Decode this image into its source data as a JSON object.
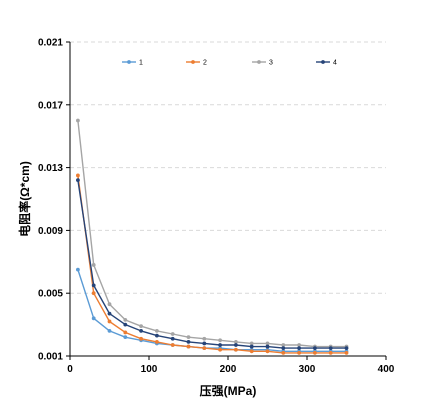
{
  "chart_data": {
    "type": "line",
    "title": "",
    "xlabel": "压强(MPa)",
    "ylabel": "电阻率(Ω*cm)",
    "xlim": [
      0,
      400
    ],
    "ylim": [
      0.001,
      0.021
    ],
    "xticks": [
      0,
      100,
      200,
      300,
      400
    ],
    "xtick_labels": [
      "0",
      "100",
      "200",
      "300",
      "400"
    ],
    "yticks": [
      0.001,
      0.005,
      0.009,
      0.013,
      0.017,
      0.021
    ],
    "ytick_labels": [
      "0.001",
      "0.005",
      "0.009",
      "0.013",
      "0.017",
      "0.021"
    ],
    "grid": "horizontal dashed",
    "legend_position": "top",
    "x": [
      10,
      30,
      50,
      70,
      90,
      110,
      130,
      150,
      170,
      190,
      210,
      230,
      250,
      270,
      290,
      310,
      330,
      350
    ],
    "series": [
      {
        "name": "1",
        "color": "#5b9bd5",
        "values": [
          0.0065,
          0.0034,
          0.0026,
          0.0022,
          0.002,
          0.0018,
          0.0017,
          0.0016,
          0.0015,
          0.0015,
          0.0014,
          0.0014,
          0.0014,
          0.0013,
          0.0013,
          0.0013,
          0.0013,
          0.0013
        ]
      },
      {
        "name": "2",
        "color": "#ed7d31",
        "values": [
          0.0125,
          0.005,
          0.0032,
          0.0025,
          0.0021,
          0.0019,
          0.0017,
          0.0016,
          0.0015,
          0.0014,
          0.0014,
          0.0013,
          0.0013,
          0.0012,
          0.0012,
          0.0012,
          0.0012,
          0.0012
        ]
      },
      {
        "name": "3",
        "color": "#a5a5a5",
        "values": [
          0.016,
          0.0068,
          0.0043,
          0.0033,
          0.0029,
          0.0026,
          0.0024,
          0.0022,
          0.0021,
          0.002,
          0.0019,
          0.0018,
          0.0018,
          0.0017,
          0.0017,
          0.0016,
          0.0016,
          0.0016
        ]
      },
      {
        "name": "4",
        "color": "#264478",
        "values": [
          0.0122,
          0.0055,
          0.0037,
          0.003,
          0.0026,
          0.0023,
          0.0021,
          0.0019,
          0.0018,
          0.0017,
          0.0017,
          0.0016,
          0.0016,
          0.0015,
          0.0015,
          0.0015,
          0.0015,
          0.0015
        ]
      }
    ]
  }
}
